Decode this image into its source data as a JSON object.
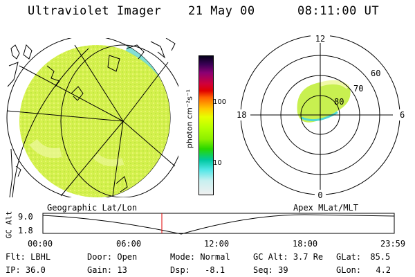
{
  "header": {
    "title": "Ultraviolet Imager",
    "date": "21 May 00",
    "time": "08:11:00 UT"
  },
  "colorbar": {
    "unit": "photon cm⁻²s⁻¹",
    "ticks": [
      "100",
      "10"
    ]
  },
  "geo_panel": {
    "label": "Geographic Lat/Lon"
  },
  "apex_panel": {
    "label": "Apex MLat/MLT",
    "mlt_labels": {
      "top": "12",
      "left": "18",
      "right": "6",
      "bottom": "0"
    },
    "lat_labels": [
      "60",
      "70",
      "80"
    ]
  },
  "altitude_plot": {
    "axis_label": "GC Alt",
    "y_ticks": [
      "9.0",
      "1.8"
    ],
    "x_ticks": [
      "00:00",
      "06:00",
      "12:00",
      "18:00",
      "23:59"
    ],
    "marker_time": "08:11"
  },
  "info": {
    "row1": [
      {
        "label": "Flt:",
        "value": "LBHL"
      },
      {
        "label": "Door:",
        "value": "Open"
      },
      {
        "label": "Mode:",
        "value": "Normal"
      },
      {
        "label": "GC Alt:",
        "value": "3.7 Re"
      },
      {
        "label": "GLat:",
        "value": "85.5"
      }
    ],
    "row2": [
      {
        "label": "IP:",
        "value": "36.0"
      },
      {
        "label": "Gain:",
        "value": "13"
      },
      {
        "label": "Dsp:",
        "value": "-8.1"
      },
      {
        "label": "Seq:",
        "value": "39"
      },
      {
        "label": "GLon:",
        "value": "4.2"
      }
    ]
  },
  "colors": {
    "disk_fill": "#d2f050",
    "aurora_fill": "#c8f050",
    "marker": "#e00000"
  }
}
